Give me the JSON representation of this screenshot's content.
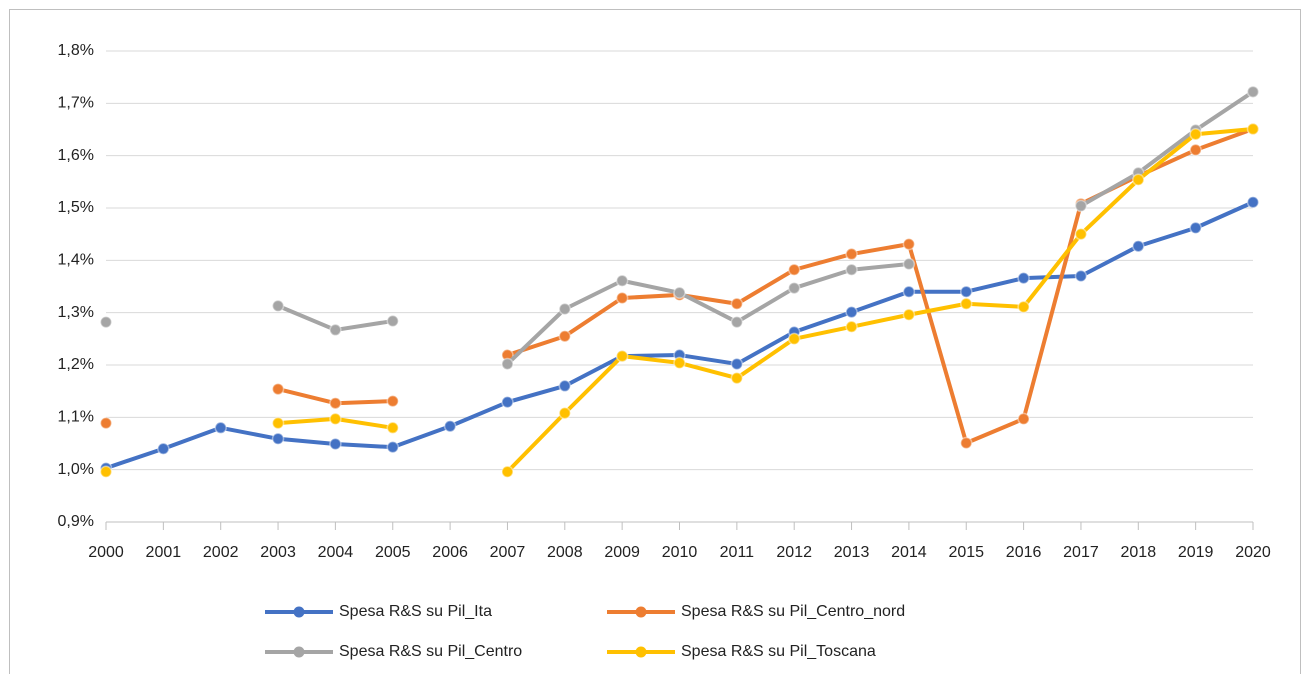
{
  "chart_data": {
    "type": "line",
    "categories": [
      "2000",
      "2001",
      "2002",
      "2003",
      "2004",
      "2005",
      "2006",
      "2007",
      "2008",
      "2009",
      "2010",
      "2011",
      "2012",
      "2013",
      "2014",
      "2015",
      "2016",
      "2017",
      "2018",
      "2019",
      "2020"
    ],
    "ylim": [
      0.9,
      1.8
    ],
    "yticks": [
      {
        "value": 0.9,
        "label": "0,9%"
      },
      {
        "value": 1.0,
        "label": "1,0%"
      },
      {
        "value": 1.1,
        "label": "1,1%"
      },
      {
        "value": 1.2,
        "label": "1,2%"
      },
      {
        "value": 1.3,
        "label": "1,3%"
      },
      {
        "value": 1.4,
        "label": "1,4%"
      },
      {
        "value": 1.5,
        "label": "1,5%"
      },
      {
        "value": 1.6,
        "label": "1,6%"
      },
      {
        "value": 1.7,
        "label": "1,7%"
      },
      {
        "value": 1.8,
        "label": "1,8%"
      }
    ],
    "grid": true,
    "legend": "bottom",
    "series": [
      {
        "name": "Spesa R&S su Pil_Ita",
        "color": "#4472c4",
        "values": [
          1.003,
          1.04,
          1.08,
          1.059,
          1.049,
          1.043,
          1.083,
          1.129,
          1.16,
          1.217,
          1.219,
          1.202,
          1.263,
          1.301,
          1.34,
          1.34,
          1.366,
          1.37,
          1.427,
          1.462,
          1.511
        ]
      },
      {
        "name": "Spesa R&S su Pil_Centro_nord",
        "color": "#ed7d31",
        "values": [
          1.089,
          null,
          null,
          1.154,
          1.127,
          1.131,
          null,
          1.219,
          1.255,
          1.328,
          1.334,
          1.317,
          1.382,
          1.412,
          1.431,
          1.051,
          1.097,
          1.508,
          1.561,
          1.611,
          1.651
        ]
      },
      {
        "name": "Spesa R&S su Pil_Centro",
        "color": "#a5a5a5",
        "values": [
          1.282,
          null,
          null,
          1.313,
          1.267,
          1.284,
          null,
          1.202,
          1.307,
          1.361,
          1.338,
          1.282,
          1.347,
          1.382,
          1.393,
          null,
          null,
          1.504,
          1.567,
          1.649,
          1.722
        ]
      },
      {
        "name": "Spesa R&S su Pil_Toscana",
        "color": "#ffc000",
        "values": [
          0.996,
          null,
          null,
          1.089,
          1.097,
          1.08,
          null,
          0.996,
          1.108,
          1.217,
          1.204,
          1.175,
          1.25,
          1.273,
          1.296,
          1.317,
          1.311,
          1.45,
          1.554,
          1.641,
          1.651
        ]
      }
    ]
  }
}
